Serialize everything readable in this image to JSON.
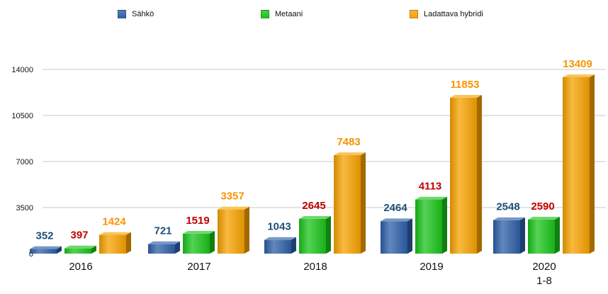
{
  "chart_data": {
    "type": "bar",
    "categories": [
      "2016",
      "2017",
      "2018",
      "2019",
      "2020"
    ],
    "category_sublabels": [
      "",
      "",
      "",
      "",
      "1-8"
    ],
    "series": [
      {
        "name": "Sähkö",
        "color": "#2E5FA8",
        "values": [
          352,
          721,
          1043,
          2464,
          2548
        ]
      },
      {
        "name": "Metaani",
        "color": "#1BC41B",
        "values": [
          397,
          1519,
          2645,
          4113,
          2590
        ]
      },
      {
        "name": "Ladattava hybridi",
        "color": "#F7A200",
        "values": [
          1424,
          3357,
          7483,
          11853,
          13409
        ]
      }
    ],
    "data_label_colors": [
      "#1F4E79",
      "#C00000",
      "#F79400"
    ],
    "yticks": [
      0,
      3500,
      7000,
      10500,
      14000
    ],
    "ylim": [
      0,
      14000
    ],
    "grid": true,
    "legend_position": "top",
    "title": "",
    "xlabel": "",
    "ylabel": ""
  }
}
